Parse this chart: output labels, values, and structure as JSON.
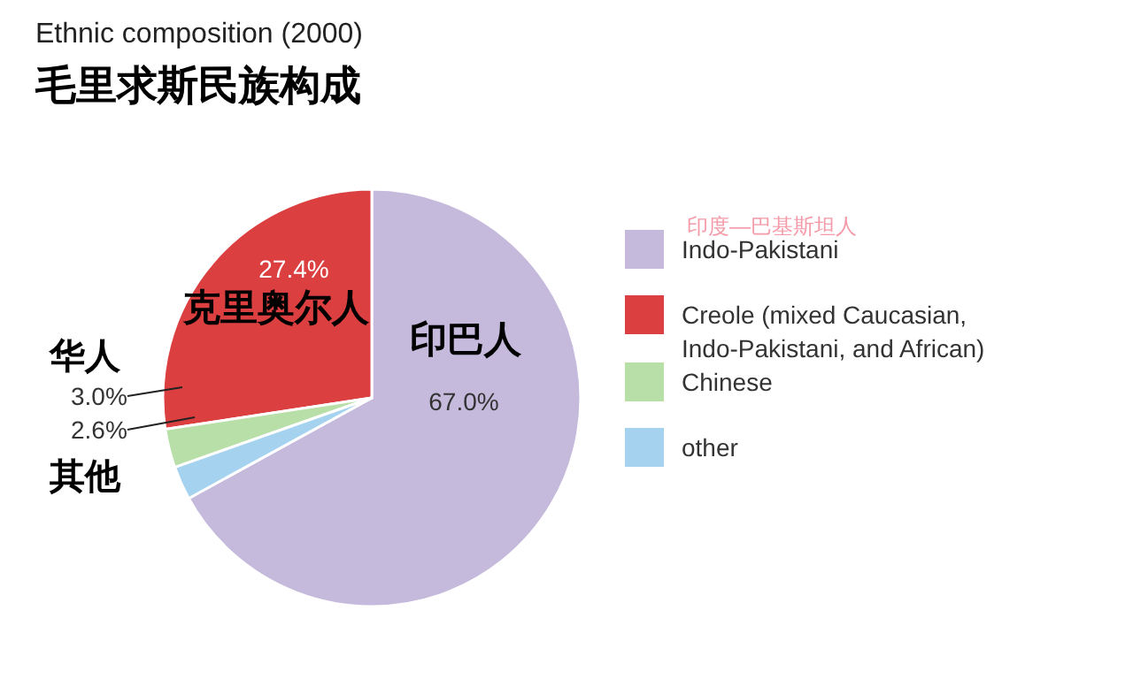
{
  "chart_data": {
    "type": "pie",
    "title": "Ethnic composition (2000)",
    "subtitle": "毛里求斯民族构成",
    "categories": [
      "Indo-Pakistani",
      "Creole (mixed Caucasian, Indo-Pakistani, and African)",
      "Chinese",
      "other"
    ],
    "values": [
      67.0,
      27.4,
      3.0,
      2.6
    ],
    "colors": [
      "#c5b9dc",
      "#dc3f40",
      "#b9dfa9",
      "#a5d3ef"
    ],
    "value_labels": [
      "67.0%",
      "27.4%",
      "3.0%",
      "2.6%"
    ],
    "legend": "right",
    "annotations": [
      "印巴人",
      "克里奥尔人",
      "华人",
      "其他",
      "印度—巴基斯坦人"
    ]
  }
}
